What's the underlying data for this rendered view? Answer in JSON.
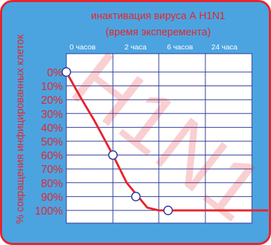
{
  "chart_data": {
    "type": "line",
    "title": "инактивация вируса А H1N1",
    "subtitle": "(время эксперемента)",
    "ylabel": "% сокращения инфицированных клеток",
    "x_tick_labels": [
      "0 часов",
      "2 часа",
      "6 часов",
      "24 часа"
    ],
    "y_tick_labels": [
      "0%",
      "10%",
      "20%",
      "30%",
      "40%",
      "50%",
      "60%",
      "70%",
      "80%",
      "90%",
      "100%"
    ],
    "ylim": [
      0,
      100
    ],
    "y_inverted": true,
    "grid": true,
    "watermark": "H1N1",
    "series": [
      {
        "x": [
          0,
          0.3,
          0.6,
          1,
          1.3,
          1.55,
          1.75,
          2,
          2.3,
          2.6,
          3,
          3.5,
          4
        ],
        "values": [
          0,
          18,
          35,
          60,
          80,
          90,
          98,
          100,
          100,
          100,
          100,
          100,
          100
        ]
      }
    ],
    "markers": [
      {
        "x": 0,
        "y": 0
      },
      {
        "x": 1,
        "y": 60
      },
      {
        "x": 1.5,
        "y": 90
      },
      {
        "x": 2.2,
        "y": 100
      }
    ],
    "colors": {
      "background": "#4ba4e0",
      "frame": "#e8242c",
      "plot_background": "#ffffff",
      "grid": "#2b3a9a",
      "line": "#e8242c",
      "tick_x": "#ffffff"
    }
  }
}
